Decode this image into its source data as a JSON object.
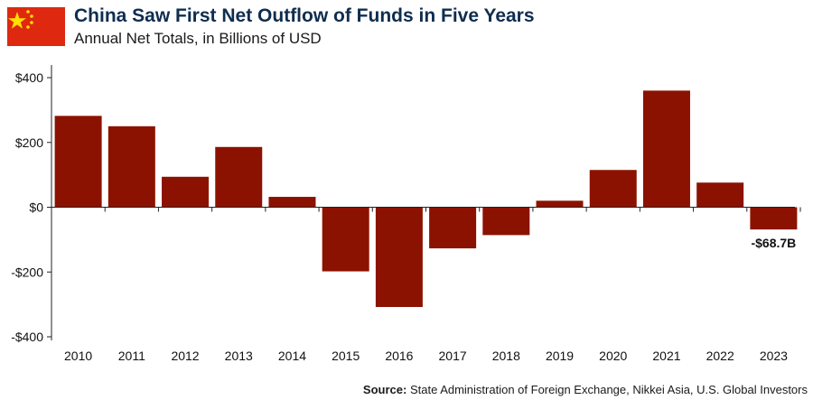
{
  "header": {
    "title": "China Saw First Net Outflow of Funds in Five Years",
    "subtitle": "Annual Net Totals, in Billions of USD"
  },
  "flag": {
    "icon": "china-flag-icon",
    "field_color": "#de2910",
    "star_color": "#ffde00"
  },
  "chart_data": {
    "type": "bar",
    "title": "China Saw First Net Outflow of Funds in Five Years",
    "subtitle": "Annual Net Totals, in Billions of USD",
    "categories": [
      "2010",
      "2011",
      "2012",
      "2013",
      "2014",
      "2015",
      "2016",
      "2017",
      "2018",
      "2019",
      "2020",
      "2021",
      "2022",
      "2023"
    ],
    "values": [
      282,
      250,
      94,
      186,
      32,
      -198,
      -308,
      -127,
      -86,
      20,
      115,
      360,
      76,
      -68.7
    ],
    "ylim": [
      -400,
      400
    ],
    "yticks": [
      400,
      200,
      0,
      -200,
      -400
    ],
    "ytick_labels": [
      "$400",
      "$200",
      "$0",
      "-$200",
      "-$400"
    ],
    "bar_color": "#8b1200",
    "annotations": [
      {
        "category": "2023",
        "text": "-$68.7B"
      }
    ],
    "grid": false,
    "legend": "none"
  },
  "footer": {
    "source_label": "Source:",
    "source_text": " State Administration of Foreign Exchange, Nikkei Asia, U.S. Global Investors"
  }
}
